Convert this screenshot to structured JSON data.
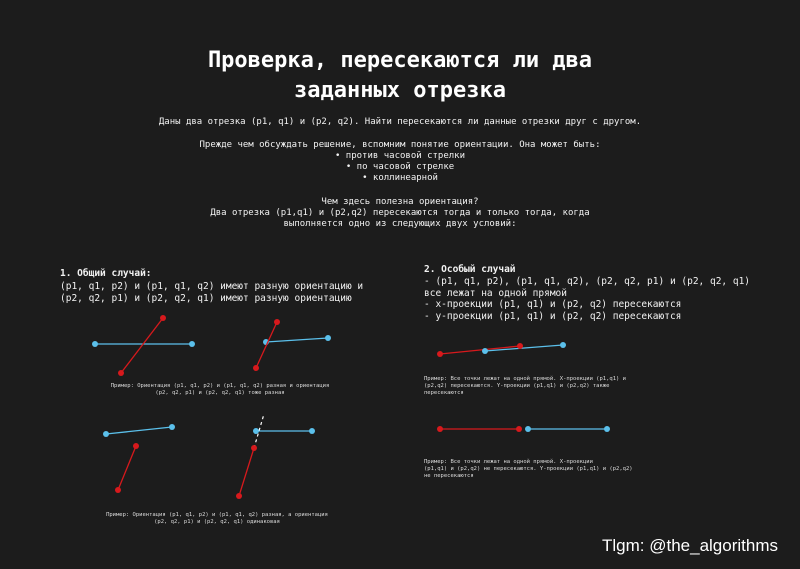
{
  "title_lines": [
    "Проверка, пересекаются ли два",
    "заданных отрезка"
  ],
  "intro": "Даны два отрезка (p1, q1) и (p2, q2). Найти пересекаются ли данные отрезки друг с другом.",
  "orientation_intro": "Прежде чем обсуждать решение, вспомним понятие ориентации. Она может быть:",
  "orientations": [
    "• против часовой стрелки",
    "• по часовой стрелке",
    "• коллинеарной"
  ],
  "question_lines": [
    "Чем здесь полезна ориентация?",
    "Два отрезка (p1,q1) и (p2,q2) пересекаются тогда и только тогда, когда",
    "выполняется одно из следующих двух условий:"
  ],
  "general_case": {
    "heading": "1. Общий случай:",
    "lines": [
      "(p1, q1, p2) и (p1, q1, q2) имеют разную ориентацию и",
      "(p2, q2, p1) и (p2, q2, q1) имеют разную ориентацию"
    ],
    "caption1_lines": [
      "Пример: Ориентация (p1, q1, p2) и (p1, q1, q2) разная и ориентация",
      "(p2, q2, p1) и (p2, q2, q1) тоже разная"
    ],
    "caption2_lines": [
      "Пример: Ориентация (p1, q1, p2) и (p1, q1, q2) разная, а ориентация",
      "(p2, q2, p1) и (p2, q2, q1) одинаковая"
    ]
  },
  "special_case": {
    "heading": "2. Особый случай",
    "lines": [
      "- (p1, q1, p2), (p1, q1, q2), (p2, q2, p1) и (p2, q2, q1)",
      "все лежат на одной прямой",
      "- x-проекции (p1, q1) и (p2, q2) пересекаются",
      "- y-проекции (p1, q1) и (p2, q2) пересекаются"
    ],
    "caption1_lines": [
      "Пример: Все точки лежат на одной прямой. X-проекции (p1,q1) и",
      "(p2,q2) пересекаются. Y-проекции (p1,q1) и (p2,q2) также",
      "пересекаются"
    ],
    "caption2_lines": [
      "Пример: Все точки лежат на одной прямой. X-проекции",
      "(p1,q1) и (p2,q2) не пересекаются. Y-проекции (p1,q1) и (p2,q2)",
      "не пересекаются"
    ]
  },
  "colors": {
    "blue": "#5bc0eb",
    "red": "#d7191c",
    "background": "#1c1c1c"
  },
  "signature": "Tlgm: @the_algorithms"
}
